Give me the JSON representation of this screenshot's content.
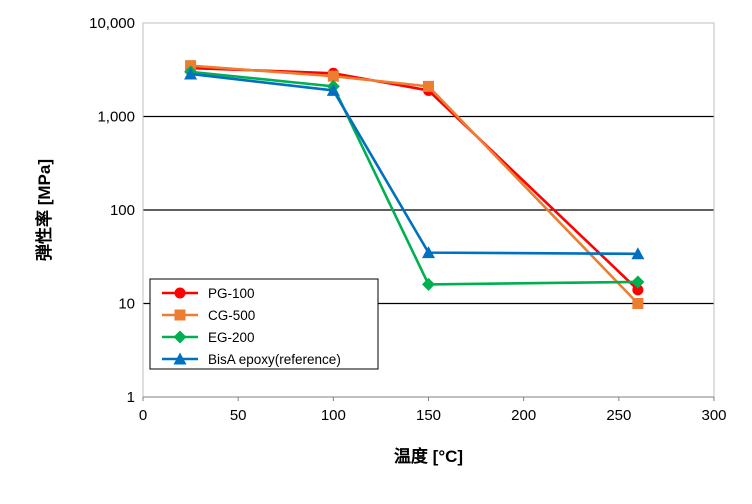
{
  "chart_data": {
    "type": "line",
    "xlabel": "温度 [°C]",
    "ylabel": "弾性率 [MPa]",
    "xlim": [
      0,
      300
    ],
    "ylim": [
      1,
      10000
    ],
    "y_scale": "log",
    "x_ticks": [
      0,
      50,
      100,
      150,
      200,
      250,
      300
    ],
    "x_tick_labels": [
      "0",
      "50",
      "100",
      "150",
      "200",
      "250",
      "300"
    ],
    "y_ticks": [
      1,
      10,
      100,
      1000,
      10000
    ],
    "y_tick_labels": [
      "1",
      "10",
      "100",
      "1,000",
      "10,000"
    ],
    "grid": "horizontal",
    "legend_position": "bottom-left",
    "series": [
      {
        "name": "PG-100",
        "color": "#ff0000",
        "marker": "circle",
        "x": [
          25,
          100,
          150,
          260
        ],
        "y": [
          3300,
          2900,
          1900,
          14
        ]
      },
      {
        "name": "CG-500",
        "color": "#ed7d31",
        "marker": "square",
        "x": [
          25,
          100,
          150,
          260
        ],
        "y": [
          3500,
          2700,
          2100,
          10
        ]
      },
      {
        "name": "EG-200",
        "color": "#00b050",
        "marker": "diamond",
        "x": [
          25,
          100,
          150,
          260
        ],
        "y": [
          3000,
          2100,
          16,
          17
        ]
      },
      {
        "name": "BisA epoxy(reference)",
        "color": "#0070c0",
        "marker": "triangle",
        "x": [
          25,
          100,
          150,
          260
        ],
        "y": [
          2850,
          1900,
          35,
          34
        ]
      }
    ]
  }
}
